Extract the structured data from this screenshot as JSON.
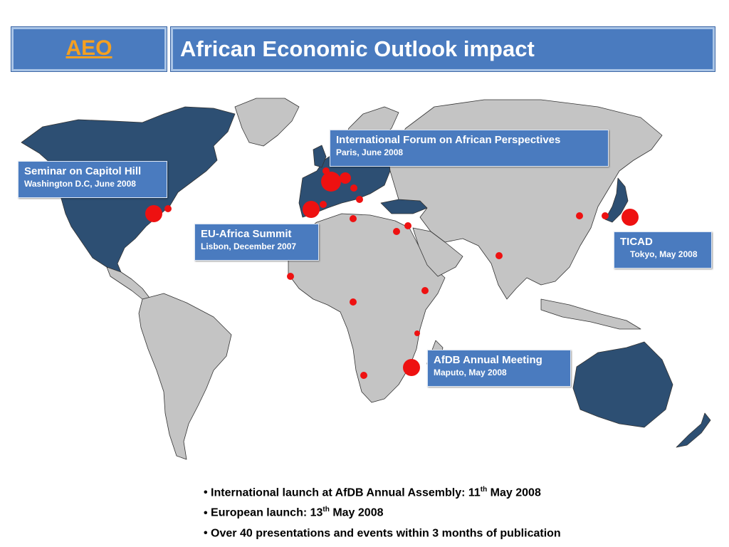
{
  "header": {
    "badge": "AEO",
    "title": "African Economic Outlook impact"
  },
  "colors": {
    "header_fill": "#4a7bbf",
    "badge_text": "#f5a020",
    "highlighted_land": "#2d4f73",
    "other_land": "#c4c4c4",
    "event_dot": "#ee1111"
  },
  "callouts": {
    "paris": {
      "title": "International Forum on African Perspectives",
      "sub": "Paris, June 2008"
    },
    "capitol": {
      "title": "Seminar on Capitol Hill",
      "sub": "Washington D.C,  June 2008"
    },
    "lisbon": {
      "title": "EU-Africa Summit",
      "sub": "Lisbon, December 2007"
    },
    "ticad": {
      "title": "TICAD",
      "sub": "Tokyo, May 2008"
    },
    "maputo": {
      "title": "AfDB Annual Meeting",
      "sub": "Maputo, May 2008"
    }
  },
  "bullets": [
    {
      "pre": "International launch at AfDB Annual Assembly: 11",
      "sup": "th",
      "post": " May 2008"
    },
    {
      "pre": "European launch: 13",
      "sup": "th",
      "post": " May 2008"
    },
    {
      "pre": "Over 40 presentations and events within 3 months of publication",
      "sup": "",
      "post": ""
    }
  ]
}
